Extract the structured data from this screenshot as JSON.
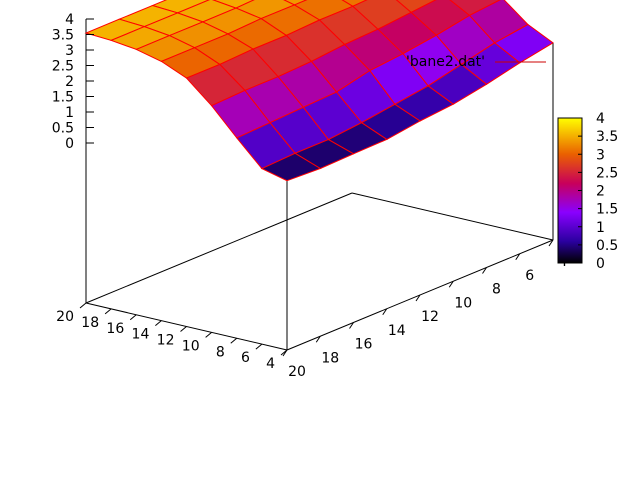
{
  "chart_data": {
    "type": "surface3d",
    "legend": {
      "label": "'bane2.dat'",
      "line_color": "#cc0000",
      "position": "top-right"
    },
    "x_ticks": [
      4,
      6,
      8,
      10,
      12,
      14,
      16,
      18,
      20
    ],
    "y_ticks": [
      4,
      6,
      8,
      10,
      12,
      14,
      16,
      18,
      20
    ],
    "z_ticks": [
      "0",
      "0.5",
      "1",
      "1.5",
      "2",
      "2.5",
      "3",
      "3.5",
      "4"
    ],
    "z_range": [
      0,
      4
    ],
    "colorbar": {
      "range": [
        0,
        4
      ],
      "ticks": [
        "0",
        "0.5",
        "1",
        "1.5",
        "2",
        "2.5",
        "3",
        "3.5",
        "4"
      ]
    },
    "surface_line_color": "#ff0000",
    "grid": false,
    "x_values": [
      20,
      18,
      16,
      14,
      12,
      10,
      8,
      6,
      4
    ],
    "y_values": [
      4,
      6,
      8,
      10,
      12,
      14,
      16,
      18,
      20
    ],
    "z": [
      [
        0.3,
        0.5,
        1.3,
        2.15,
        2.85,
        3.2,
        3.4,
        3.5,
        3.55
      ],
      [
        0.25,
        0.55,
        1.35,
        2.2,
        2.85,
        3.2,
        3.4,
        3.5,
        3.55
      ],
      [
        0.28,
        0.55,
        1.4,
        2.2,
        2.9,
        3.2,
        3.4,
        3.5,
        3.55
      ],
      [
        0.3,
        0.65,
        1.45,
        2.25,
        2.9,
        3.25,
        3.4,
        3.5,
        3.55
      ],
      [
        0.45,
        0.8,
        1.7,
        2.35,
        2.95,
        3.25,
        3.45,
        3.5,
        3.55
      ],
      [
        0.55,
        0.95,
        1.8,
        2.4,
        2.95,
        3.25,
        3.45,
        3.55,
        3.6
      ],
      [
        0.75,
        1.2,
        1.95,
        2.5,
        3.0,
        3.3,
        3.45,
        3.55,
        3.6
      ],
      [
        1.0,
        1.45,
        2.15,
        2.6,
        3.05,
        3.3,
        3.45,
        3.55,
        3.6
      ],
      [
        1.2,
        1.6,
        2.25,
        2.7,
        3.1,
        3.35,
        3.5,
        3.55,
        3.6
      ]
    ]
  }
}
